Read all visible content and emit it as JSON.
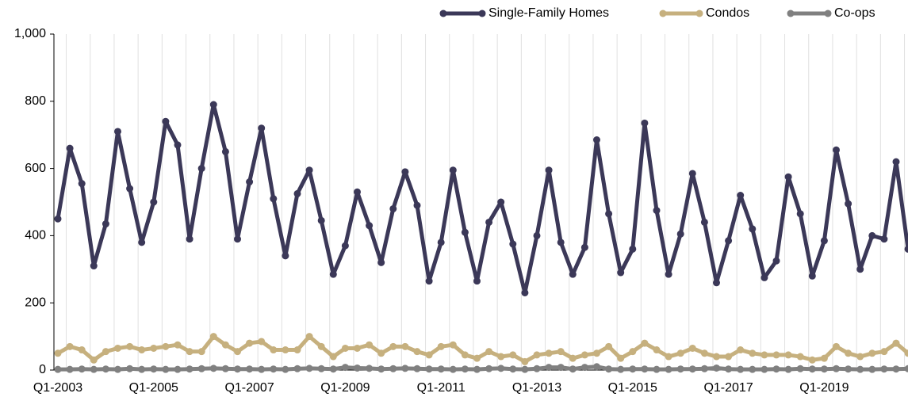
{
  "chart_data": {
    "type": "line",
    "categories": [
      "Q1-2003",
      null,
      null,
      null,
      null,
      null,
      null,
      null,
      "Q1-2005",
      null,
      null,
      null,
      null,
      null,
      null,
      null,
      "Q1-2007",
      null,
      null,
      null,
      null,
      null,
      null,
      null,
      "Q1-2009",
      null,
      null,
      null,
      null,
      null,
      null,
      null,
      "Q1-2011",
      null,
      null,
      null,
      null,
      null,
      null,
      null,
      "Q1-2013",
      null,
      null,
      null,
      null,
      null,
      null,
      null,
      "Q1-2015",
      null,
      null,
      null,
      null,
      null,
      null,
      null,
      "Q1-2017",
      null,
      null,
      null,
      null,
      null,
      null,
      null,
      "Q1-2019",
      null,
      null,
      null,
      null,
      null,
      null,
      null
    ],
    "series": [
      {
        "name": "Single-Family Homes",
        "color": "#3b3858",
        "values": [
          450,
          660,
          555,
          310,
          435,
          710,
          540,
          380,
          500,
          740,
          670,
          390,
          600,
          790,
          650,
          390,
          560,
          720,
          510,
          340,
          525,
          595,
          445,
          285,
          370,
          530,
          430,
          320,
          480,
          590,
          490,
          265,
          380,
          595,
          410,
          265,
          440,
          500,
          375,
          230,
          400,
          595,
          380,
          285,
          365,
          685,
          465,
          290,
          360,
          735,
          475,
          285,
          405,
          585,
          440,
          260,
          385,
          520,
          420,
          275,
          325,
          575,
          465,
          280,
          385,
          655,
          495,
          300,
          400,
          390,
          620,
          360
        ]
      },
      {
        "name": "Condos",
        "color": "#c6b07e",
        "values": [
          50,
          70,
          60,
          30,
          55,
          65,
          70,
          60,
          65,
          70,
          75,
          55,
          55,
          100,
          75,
          55,
          80,
          85,
          60,
          60,
          60,
          100,
          70,
          40,
          65,
          65,
          75,
          50,
          70,
          70,
          55,
          45,
          70,
          75,
          45,
          35,
          55,
          40,
          45,
          25,
          45,
          50,
          55,
          35,
          45,
          50,
          70,
          35,
          55,
          80,
          60,
          40,
          50,
          65,
          50,
          40,
          40,
          60,
          50,
          45,
          45,
          45,
          40,
          30,
          35,
          70,
          50,
          40,
          50,
          55,
          80,
          50
        ]
      },
      {
        "name": "Co-ops",
        "color": "#808080",
        "values": [
          2,
          2,
          3,
          2,
          3,
          2,
          4,
          2,
          3,
          2,
          2,
          3,
          4,
          5,
          4,
          3,
          3,
          2,
          3,
          2,
          4,
          5,
          4,
          3,
          8,
          6,
          5,
          3,
          4,
          5,
          4,
          3,
          3,
          2,
          3,
          2,
          4,
          5,
          3,
          2,
          4,
          8,
          8,
          3,
          8,
          10,
          3,
          2,
          3,
          3,
          2,
          2,
          3,
          3,
          4,
          6,
          3,
          2,
          2,
          2,
          3,
          2,
          4,
          3,
          3,
          4,
          3,
          2,
          2,
          3,
          3,
          4
        ]
      }
    ],
    "ylim": [
      0,
      1000
    ],
    "yticks": [
      0,
      200,
      400,
      600,
      800,
      {
        "value": 1000,
        "label": "1,000"
      }
    ],
    "grid": true,
    "legend": "top-right"
  }
}
